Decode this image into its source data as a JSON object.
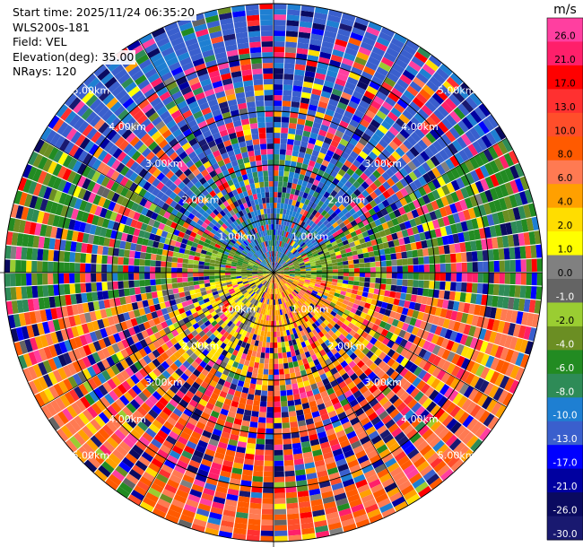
{
  "info": {
    "start_time": "Start time: 2025/11/24 06:35:20",
    "site": "WLS200s-181",
    "field": "Field: VEL",
    "elevation": "Elevation(deg): 35.00",
    "nrays": "NRays: 120"
  },
  "chart_data": {
    "type": "heatmap",
    "projection": "polar-ppi",
    "field": "VEL",
    "unit": "m/s",
    "n_rays": 120,
    "max_range_km": 5.0,
    "range_rings_km": [
      1,
      2,
      3,
      4,
      5
    ],
    "ring_labels": [
      "1.00km",
      "2.00km",
      "3.00km",
      "4.00km",
      "5.00km"
    ],
    "colorbar": {
      "ticks": [
        "26.0",
        "21.0",
        "17.0",
        "13.0",
        "10.0",
        "8.0",
        "6.0",
        "4.0",
        "2.0",
        "1.0",
        "0.0",
        "-1.0",
        "-2.0",
        "-4.0",
        "-6.0",
        "-8.0",
        "-10.0",
        "-13.0",
        "-17.0",
        "-21.0",
        "-26.0",
        "-30.0"
      ],
      "bins": [
        {
          "min": 26,
          "max": 30,
          "color": "#ff3fa0"
        },
        {
          "min": 21,
          "max": 26,
          "color": "#ff1f6a"
        },
        {
          "min": 17,
          "max": 21,
          "color": "#ff0000"
        },
        {
          "min": 13,
          "max": 17,
          "color": "#ff3030"
        },
        {
          "min": 10,
          "max": 13,
          "color": "#ff4e2a"
        },
        {
          "min": 8,
          "max": 10,
          "color": "#ff5a00"
        },
        {
          "min": 6,
          "max": 8,
          "color": "#ff7a52"
        },
        {
          "min": 4,
          "max": 6,
          "color": "#ffa000"
        },
        {
          "min": 2,
          "max": 4,
          "color": "#ffdd00"
        },
        {
          "min": 1,
          "max": 2,
          "color": "#ffff00"
        },
        {
          "min": 0,
          "max": 1,
          "color": "#808080"
        },
        {
          "min": -1,
          "max": 0,
          "color": "#646464"
        },
        {
          "min": -2,
          "max": -1,
          "color": "#9acd32"
        },
        {
          "min": -4,
          "max": -2,
          "color": "#6b8e23"
        },
        {
          "min": -6,
          "max": -4,
          "color": "#228b22"
        },
        {
          "min": -8,
          "max": -6,
          "color": "#2e8b57"
        },
        {
          "min": -10,
          "max": -8,
          "color": "#1e7fd2"
        },
        {
          "min": -13,
          "max": -10,
          "color": "#3a5fcd"
        },
        {
          "min": -17,
          "max": -13,
          "color": "#0000ff"
        },
        {
          "min": -21,
          "max": -17,
          "color": "#0000a0"
        },
        {
          "min": -26,
          "max": -21,
          "color": "#0a0a60"
        },
        {
          "min": -30,
          "max": -26,
          "color": "#191970"
        }
      ]
    },
    "near_range_pattern": [
      {
        "azimuth_range_deg": [
          300,
          60
        ],
        "dominant_velocity_ms": -9
      },
      {
        "azimuth_range_deg": [
          60,
          100
        ],
        "dominant_velocity_ms": -3
      },
      {
        "azimuth_range_deg": [
          100,
          200
        ],
        "dominant_velocity_ms": 5
      },
      {
        "azimuth_range_deg": [
          200,
          260
        ],
        "dominant_velocity_ms": 1.5
      },
      {
        "azimuth_range_deg": [
          260,
          300
        ],
        "dominant_velocity_ms": -3
      }
    ],
    "far_range_pattern": [
      {
        "azimuth_range_deg": [
          300,
          60
        ],
        "dominant_velocity_ms": -11
      },
      {
        "azimuth_range_deg": [
          60,
          100
        ],
        "dominant_velocity_ms": -5
      },
      {
        "azimuth_range_deg": [
          100,
          160
        ],
        "dominant_velocity_ms": 7
      },
      {
        "azimuth_range_deg": [
          160,
          220
        ],
        "dominant_velocity_ms": 9
      },
      {
        "azimuth_range_deg": [
          220,
          260
        ],
        "dominant_velocity_ms": 7
      },
      {
        "azimuth_range_deg": [
          260,
          300
        ],
        "dominant_velocity_ms": -5
      }
    ]
  }
}
